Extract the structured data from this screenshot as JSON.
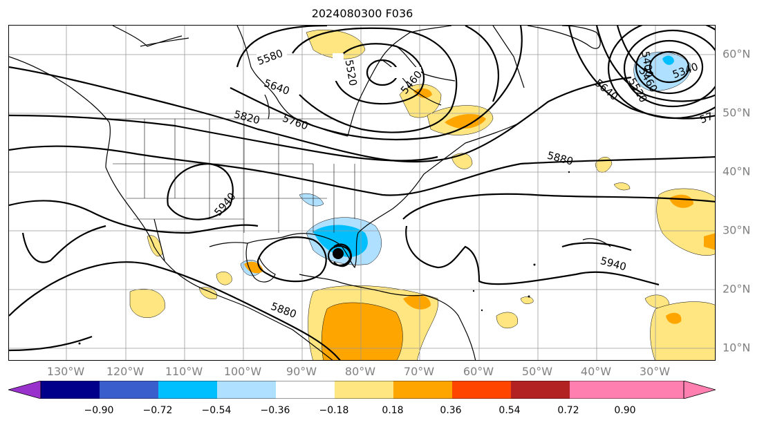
{
  "title": "2024080300 F036",
  "lon_labels": [
    "130°W",
    "120°W",
    "110°W",
    "100°W",
    "90°W",
    "80°W",
    "70°W",
    "60°W",
    "50°W",
    "40°W",
    "30°W"
  ],
  "lat_labels": [
    "60°N",
    "50°N",
    "40°N",
    "30°N",
    "20°N",
    "10°N"
  ],
  "contour_labels": [
    "5580",
    "5520",
    "5460",
    "5640",
    "5820",
    "5760",
    "5880",
    "5940",
    "5940",
    "5880",
    "5400",
    "5340",
    "5460",
    "5520",
    "5640",
    "57"
  ],
  "colorbar": {
    "ticks": [
      "−0.90",
      "−0.72",
      "−0.54",
      "−0.36",
      "−0.18",
      "0.18",
      "0.36",
      "0.54",
      "0.72",
      "0.90"
    ],
    "colors": [
      "#9932cc",
      "#00008b",
      "#3a5fcd",
      "#00bfff",
      "#b0e0ff",
      "#ffffff",
      "#ffe680",
      "#ffa500",
      "#ff4500",
      "#b22222",
      "#ff80b0"
    ]
  },
  "colors": {
    "land_outline": "#000000",
    "grid": "#999999",
    "contour": "#000000",
    "storm_marker": "#000000"
  }
}
